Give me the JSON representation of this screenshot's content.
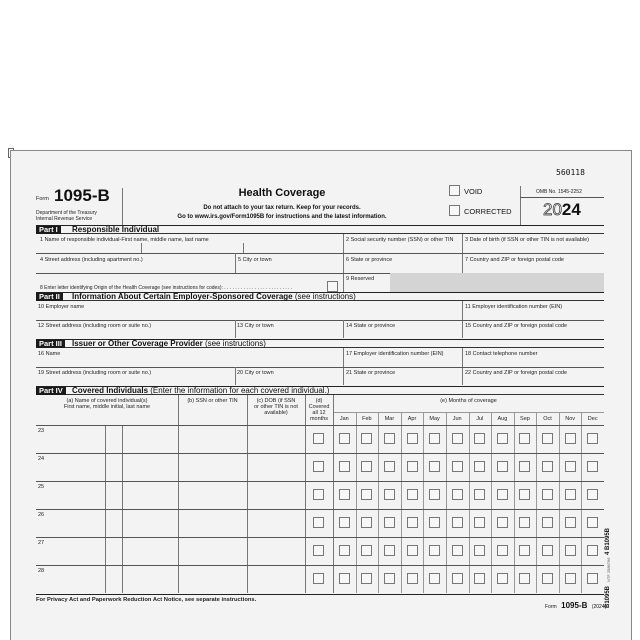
{
  "form": {
    "control_number": "560118",
    "form_word": "Form",
    "form_number": "1095-B",
    "agency_line1": "Department of the Treasury",
    "agency_line2": "Internal Revenue Service",
    "title": "Health Coverage",
    "instr1": "Do not attach to your tax return. Keep for your records.",
    "instr2": "Go to www.irs.gov/Form1095B for instructions and the latest information.",
    "void_label": "VOID",
    "corrected_label": "CORRECTED",
    "omb": "OMB No. 1545-2252",
    "year_outline": "20",
    "year_bold": "24"
  },
  "part1": {
    "tag": "Part I",
    "title": "Responsible Individual",
    "f1": "1  Name of responsible individual-First name, middle name, last name",
    "f2": "2  Social security number (SSN) or other TIN",
    "f3": "3  Date of birth (if SSN or other TIN is not available)",
    "f4": "4  Street address (including apartment no.)",
    "f5": "5  City or town",
    "f6": "6  State or province",
    "f7": "7  Country and ZIP or foreign postal code",
    "f8": "8  Enter letter identifying Origin of the Health Coverage (see instructions for codes): . . . . . . . . . . . . . . . . . . . . . . . . .",
    "f9": "9  Reserved"
  },
  "part2": {
    "tag": "Part II",
    "title": "Information About Certain Employer-Sponsored Coverage",
    "note": " (see instructions)",
    "f10": "10  Employer name",
    "f11": "11  Employer identification number (EIN)",
    "f12": "12  Street address (including room or suite no.)",
    "f13": "13  City or town",
    "f14": "14  State or province",
    "f15": "15  Country and ZIP or foreign postal code"
  },
  "part3": {
    "tag": "Part III",
    "title": "Issuer or Other Coverage Provider",
    "note": " (see instructions)",
    "f16": "16  Name",
    "f17": "17  Employer identification number (EIN)",
    "f18": "18  Contact telephone number",
    "f19": "19  Street address (including room or suite no.)",
    "f20": "20  City or town",
    "f21": "21  State or province",
    "f22": "22  Country and ZIP or foreign postal code"
  },
  "part4": {
    "tag": "Part IV",
    "title": "Covered Individuals",
    "note": " (Enter the information for each covered individual.)",
    "col_a1": "(a) Name of covered individual(s)",
    "col_a2": "First name, middle initial, last name",
    "col_b": "(b) SSN or other TIN",
    "col_c1": "(c) DOB (if SSN",
    "col_c2": "or other TIN is not",
    "col_c3": "available)",
    "col_d1": "(d)",
    "col_d2": "Covered",
    "col_d3": "all 12",
    "col_d4": "months",
    "col_e": "(e) Months of coverage",
    "months": [
      "Jan",
      "Feb",
      "Mar",
      "Apr",
      "May",
      "Jun",
      "Jul",
      "Aug",
      "Sep",
      "Oct",
      "Nov",
      "Dec"
    ],
    "rows": [
      "23",
      "24",
      "25",
      "26",
      "27",
      "28"
    ]
  },
  "footer": {
    "privacy": "For Privacy Act and Paperwork Reduction Act Notice, see separate instructions.",
    "form_word": "Form",
    "form_number": "1095-B",
    "year": "(2024)"
  },
  "side": {
    "code1": "4  B1095B",
    "code2": "NTF 2586766",
    "code3": "B1095B"
  }
}
